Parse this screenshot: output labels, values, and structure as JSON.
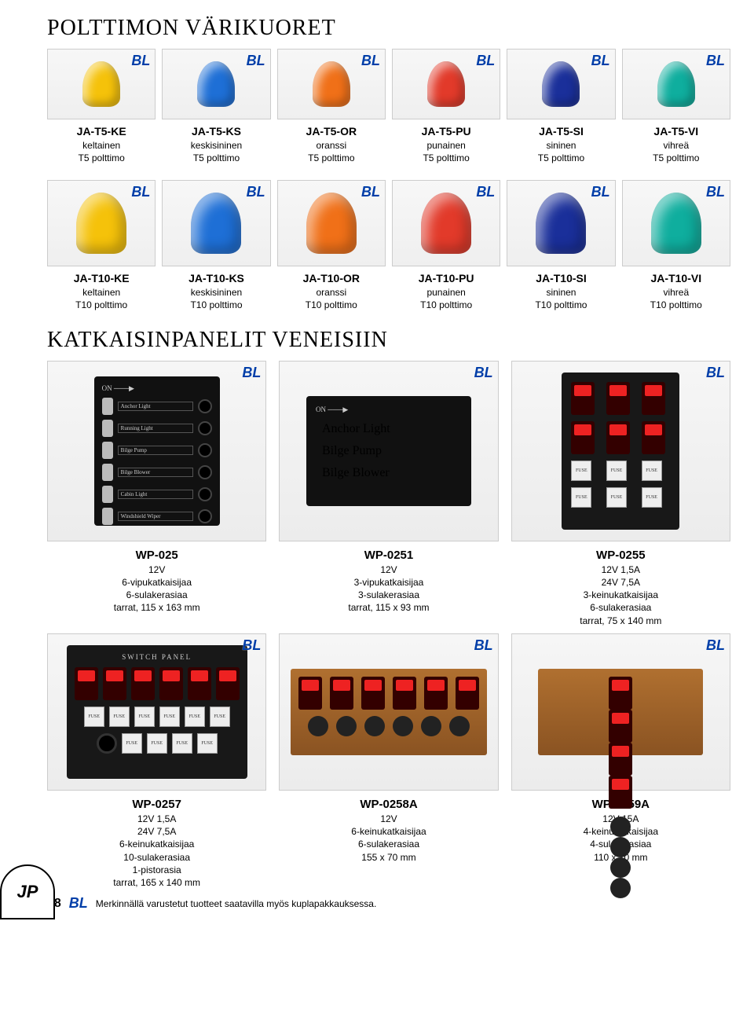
{
  "titles": {
    "section1": "POLTTIMON VÄRIKUORET",
    "section2": "KATKAISINPANELIT VENEISIIN"
  },
  "bl_label": "BL",
  "bulb_rows": {
    "t5": [
      {
        "sku": "JA-T5-KE",
        "desc1": "keltainen",
        "desc2": "T5 polttimo",
        "color": "#f5c20a"
      },
      {
        "sku": "JA-T5-KS",
        "desc1": "keskisininen",
        "desc2": "T5 polttimo",
        "color": "#1e6fd6"
      },
      {
        "sku": "JA-T5-OR",
        "desc1": "oranssi",
        "desc2": "T5 polttimo",
        "color": "#f07018"
      },
      {
        "sku": "JA-T5-PU",
        "desc1": "punainen",
        "desc2": "T5 polttimo",
        "color": "#e23a2a"
      },
      {
        "sku": "JA-T5-SI",
        "desc1": "sininen",
        "desc2": "T5 polttimo",
        "color": "#1a2f9a"
      },
      {
        "sku": "JA-T5-VI",
        "desc1": "vihreä",
        "desc2": "T5 polttimo",
        "color": "#0fae9e"
      }
    ],
    "t10": [
      {
        "sku": "JA-T10-KE",
        "desc1": "keltainen",
        "desc2": "T10 polttimo",
        "color": "#f5c20a"
      },
      {
        "sku": "JA-T10-KS",
        "desc1": "keskisininen",
        "desc2": "T10 polttimo",
        "color": "#1e6fd6"
      },
      {
        "sku": "JA-T10-OR",
        "desc1": "oranssi",
        "desc2": "T10 polttimo",
        "color": "#f07018"
      },
      {
        "sku": "JA-T10-PU",
        "desc1": "punainen",
        "desc2": "T10 polttimo",
        "color": "#e23a2a"
      },
      {
        "sku": "JA-T10-SI",
        "desc1": "sininen",
        "desc2": "T10 polttimo",
        "color": "#1a2f9a"
      },
      {
        "sku": "JA-T10-VI",
        "desc1": "vihreä",
        "desc2": "T10 polttimo",
        "color": "#0fae9e"
      }
    ]
  },
  "panel_labels": {
    "on": "ON",
    "anchor": "Anchor Light",
    "running": "Running Light",
    "bilgep": "Bilge Pump",
    "bilgeb": "Bilge Blower",
    "cabin": "Cabin Light",
    "wiper": "Windshield Wiper",
    "fuse": "FUSE",
    "switch_panel": "SWITCH    PANEL"
  },
  "panels_row1": [
    {
      "sku": "WP-025",
      "lines": [
        "12V",
        "6-vipukatkaisijaa",
        "6-sulakerasiaa",
        "tarrat, 115 x 163 mm"
      ]
    },
    {
      "sku": "WP-0251",
      "lines": [
        "12V",
        "3-vipukatkaisijaa",
        "3-sulakerasiaa",
        "tarrat, 115 x 93 mm"
      ]
    },
    {
      "sku": "WP-0255",
      "lines": [
        "12V 1,5A",
        "24V 7,5A",
        "3-keinukatkaisijaa",
        "6-sulakerasiaa",
        "tarrat, 75 x 140 mm"
      ]
    }
  ],
  "panels_row2": [
    {
      "sku": "WP-0257",
      "lines": [
        "12V 1,5A",
        "24V 7,5A",
        "6-keinukatkaisijaa",
        "10-sulakerasiaa",
        "1-pistorasia",
        "tarrat, 165 x 140 mm"
      ]
    },
    {
      "sku": "WP-0258A",
      "lines": [
        "12V",
        "6-keinukatkaisijaa",
        "6-sulakerasiaa",
        "155 x 70 mm"
      ]
    },
    {
      "sku": "WP-0259A",
      "lines": [
        "12V 15A",
        "4-keinukatkaisijaa",
        "4-sulakerasiaa",
        "110 x 70 mm"
      ]
    }
  ],
  "footer": {
    "page": "18",
    "text": "Merkinnällä varustetut tuotteet saatavilla myös kuplapakkauksessa.",
    "logo": "JP"
  }
}
